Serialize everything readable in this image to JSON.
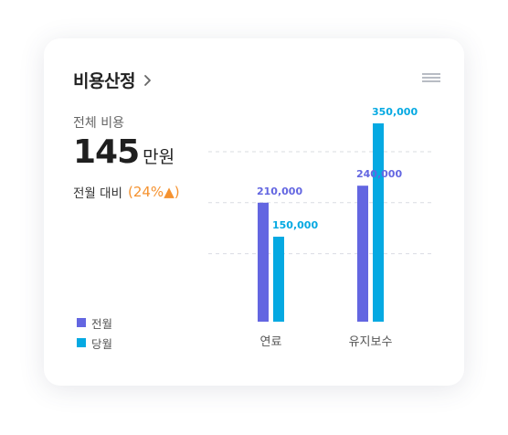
{
  "card": {
    "title": "비용산정",
    "total_label": "전체 비용",
    "total_value": "145",
    "total_unit": "만원",
    "compare_label": "전월 대비",
    "compare_value": "(24%",
    "compare_arrow": "▲)"
  },
  "legend": [
    {
      "label": "전월",
      "color": "#6366e1"
    },
    {
      "label": "당월",
      "color": "#05a9e2"
    }
  ],
  "chart_data": {
    "type": "bar",
    "categories": [
      "연료",
      "유지보수"
    ],
    "series": [
      {
        "name": "전월",
        "values": [
          210000,
          240000
        ],
        "color": "#6366e1",
        "labels": [
          "210,000",
          "240,000"
        ]
      },
      {
        "name": "당월",
        "values": [
          150000,
          350000
        ],
        "color": "#05a9e2",
        "labels": [
          "150,000",
          "350,000"
        ]
      }
    ],
    "ylim": [
      0,
      400000
    ],
    "grid": true,
    "legend_position": "bottom-left"
  }
}
